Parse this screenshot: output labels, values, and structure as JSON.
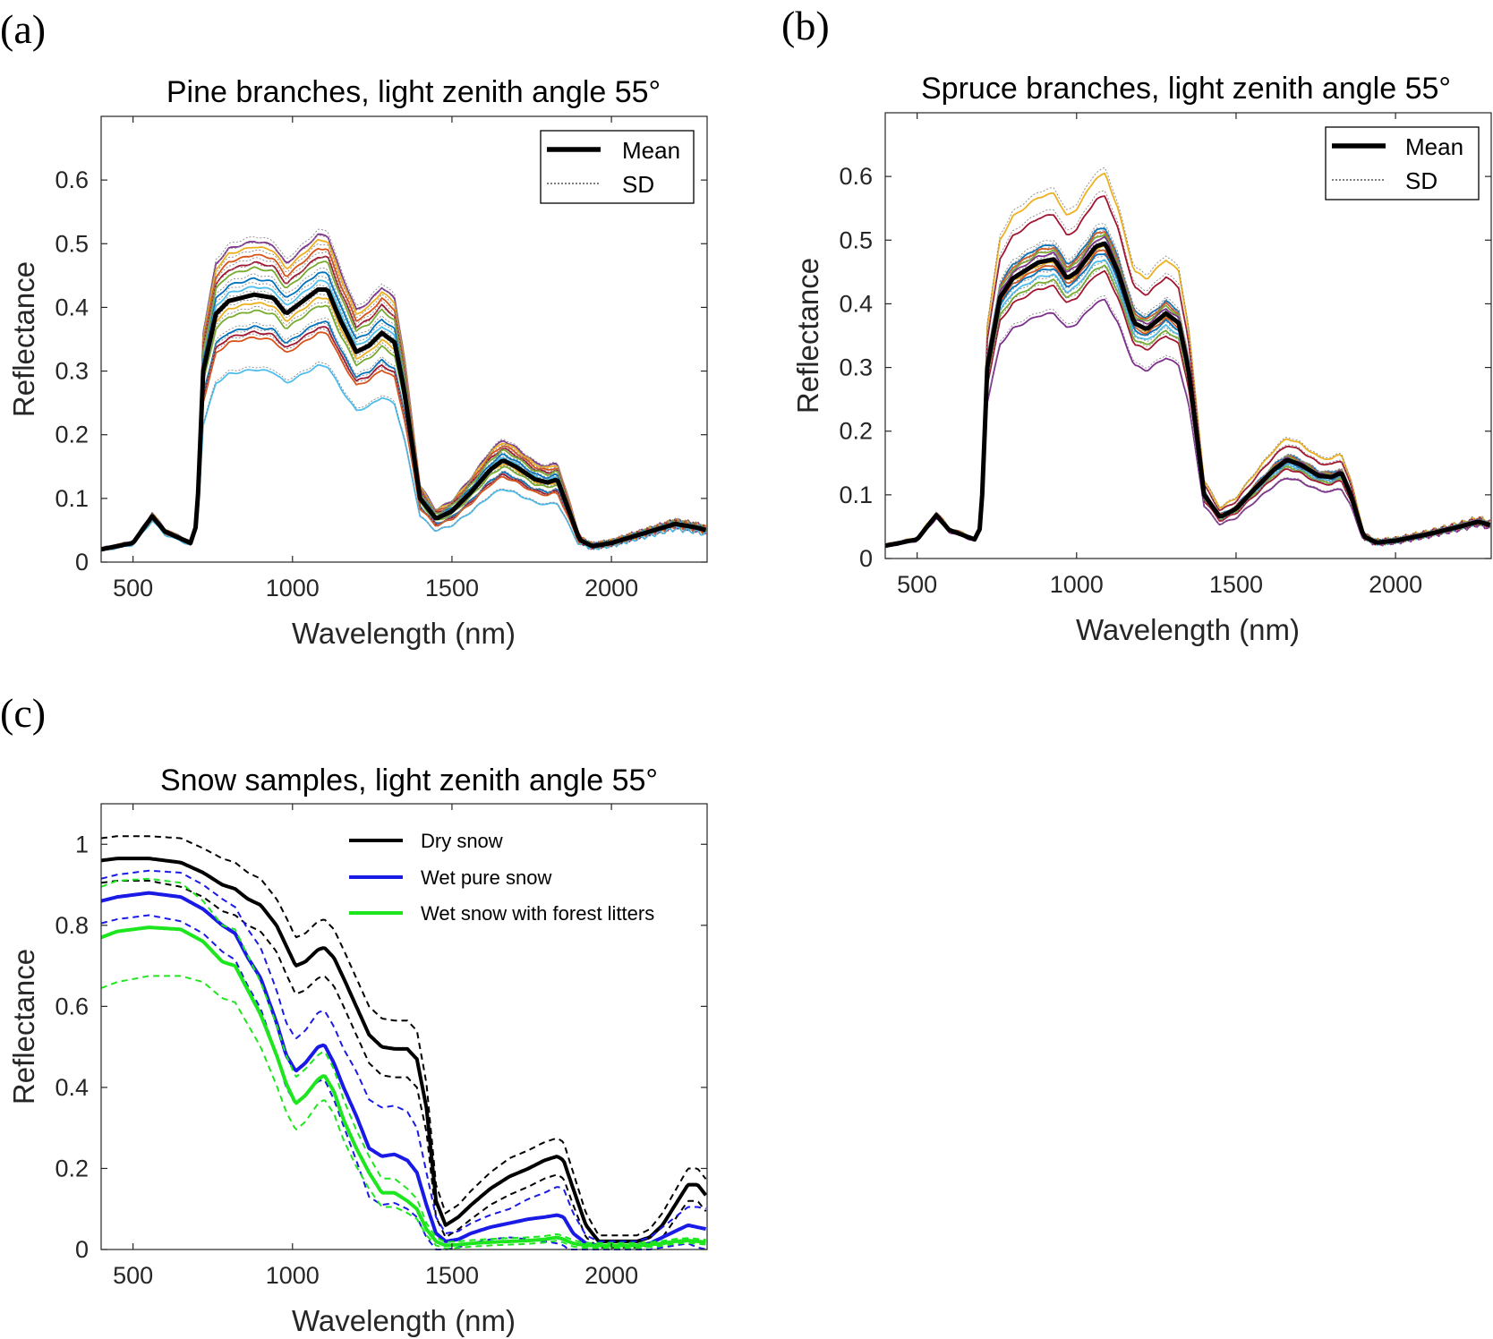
{
  "figure": {
    "panels": [
      {
        "id": "a",
        "label": "(a)"
      },
      {
        "id": "b",
        "label": "(b)"
      },
      {
        "id": "c",
        "label": "(c)"
      }
    ]
  },
  "chart_data": [
    {
      "type": "line",
      "panel": "(a)",
      "title": "Pine branches, light zenith angle 55°",
      "xlabel": "Wavelength (nm)",
      "ylabel": "Reflectance",
      "xlim": [
        400,
        2300
      ],
      "ylim": [
        0,
        0.7
      ],
      "xticks": [
        500,
        1000,
        1500,
        2000
      ],
      "xtick_labels": [
        "500",
        "1000",
        "1500",
        "2000"
      ],
      "yticks": [
        0,
        0.1,
        0.2,
        0.3,
        0.4,
        0.5,
        0.6
      ],
      "ytick_labels": [
        "0",
        "0.1",
        "0.2",
        "0.3",
        "0.4",
        "0.5",
        "0.6"
      ],
      "legend": {
        "position": "top-right",
        "entries": [
          "Mean",
          "SD"
        ]
      },
      "mean_profile": {
        "x": [
          400,
          500,
          560,
          600,
          680,
          700,
          720,
          760,
          800,
          880,
          940,
          980,
          1020,
          1080,
          1110,
          1150,
          1200,
          1240,
          1280,
          1320,
          1350,
          1400,
          1450,
          1500,
          1560,
          1620,
          1660,
          1700,
          1760,
          1800,
          1830,
          1860,
          1900,
          1940,
          2000,
          2100,
          2200,
          2260,
          2300
        ],
        "values": [
          0.02,
          0.03,
          0.072,
          0.048,
          0.03,
          0.06,
          0.3,
          0.39,
          0.41,
          0.42,
          0.415,
          0.39,
          0.405,
          0.428,
          0.428,
          0.38,
          0.33,
          0.34,
          0.36,
          0.345,
          0.27,
          0.1,
          0.068,
          0.08,
          0.11,
          0.145,
          0.16,
          0.15,
          0.13,
          0.125,
          0.13,
          0.09,
          0.035,
          0.025,
          0.03,
          0.045,
          0.06,
          0.055,
          0.05
        ]
      },
      "sample_scales": [
        1.2,
        1.18,
        1.15,
        1.12,
        1.1,
        1.06,
        1.03,
        1.0,
        0.97,
        0.94,
        0.88,
        0.86,
        0.84,
        0.72
      ],
      "sample_colors": [
        "#7E2F8E",
        "#EDB120",
        "#D95319",
        "#A2142F",
        "#77AC30",
        "#0072BD",
        "#4DBEEE",
        "#D95319",
        "#EDB120",
        "#77AC30",
        "#0072BD",
        "#A2142F",
        "#D95319",
        "#4DBEEE"
      ]
    },
    {
      "type": "line",
      "panel": "(b)",
      "title": "Spruce branches, light zenith angle 55°",
      "xlabel": "Wavelength (nm)",
      "ylabel": "Reflectance",
      "xlim": [
        400,
        2300
      ],
      "ylim": [
        0,
        0.7
      ],
      "xticks": [
        500,
        1000,
        1500,
        2000
      ],
      "xtick_labels": [
        "500",
        "1000",
        "1500",
        "2000"
      ],
      "yticks": [
        0,
        0.1,
        0.2,
        0.3,
        0.4,
        0.5,
        0.6
      ],
      "ytick_labels": [
        "0",
        "0.1",
        "0.2",
        "0.3",
        "0.4",
        "0.5",
        "0.6"
      ],
      "legend": {
        "position": "top-right",
        "entries": [
          "Mean",
          "SD"
        ]
      },
      "mean_profile": {
        "x": [
          400,
          500,
          560,
          600,
          680,
          700,
          720,
          760,
          800,
          880,
          930,
          970,
          1000,
          1060,
          1090,
          1130,
          1180,
          1220,
          1280,
          1320,
          1350,
          1400,
          1450,
          1500,
          1560,
          1620,
          1660,
          1700,
          1760,
          1800,
          1830,
          1860,
          1900,
          1940,
          2000,
          2100,
          2200,
          2260,
          2300
        ],
        "values": [
          0.02,
          0.03,
          0.068,
          0.045,
          0.03,
          0.05,
          0.3,
          0.41,
          0.44,
          0.465,
          0.47,
          0.44,
          0.45,
          0.49,
          0.495,
          0.45,
          0.37,
          0.36,
          0.385,
          0.37,
          0.3,
          0.1,
          0.065,
          0.078,
          0.11,
          0.14,
          0.155,
          0.148,
          0.13,
          0.128,
          0.135,
          0.1,
          0.035,
          0.025,
          0.028,
          0.038,
          0.05,
          0.058,
          0.052
        ]
      },
      "sample_scales": [
        1.22,
        1.15,
        1.05,
        1.04,
        1.03,
        1.02,
        1.0,
        0.99,
        0.98,
        0.97,
        0.95,
        0.93,
        0.91,
        0.82
      ],
      "sample_colors": [
        "#EDB120",
        "#A2142F",
        "#0072BD",
        "#D95319",
        "#77AC30",
        "#7E2F8E",
        "#4DBEEE",
        "#EDB120",
        "#D95319",
        "#0072BD",
        "#4DBEEE",
        "#77AC30",
        "#A2142F",
        "#7E2F8E"
      ]
    },
    {
      "type": "line",
      "panel": "(c)",
      "title": "Snow samples, light zenith angle 55°",
      "xlabel": "Wavelength (nm)",
      "ylabel": "Reflectance",
      "xlim": [
        400,
        2300
      ],
      "ylim": [
        0,
        1.1
      ],
      "xticks": [
        500,
        1000,
        1500,
        2000
      ],
      "xtick_labels": [
        "500",
        "1000",
        "1500",
        "2000"
      ],
      "yticks": [
        0,
        0.2,
        0.4,
        0.6,
        0.8,
        1
      ],
      "ytick_labels": [
        "0",
        "0.2",
        "0.4",
        "0.6",
        "0.8",
        "1"
      ],
      "legend": {
        "position": "top-right",
        "entries": [
          "Dry snow",
          "Wet pure snow",
          "Wet snow with forest litters"
        ]
      },
      "series": [
        {
          "name": "Dry snow",
          "color": "#000000",
          "x": [
            400,
            450,
            550,
            650,
            720,
            780,
            820,
            860,
            900,
            950,
            980,
            1010,
            1040,
            1080,
            1100,
            1130,
            1160,
            1200,
            1240,
            1280,
            1320,
            1360,
            1390,
            1420,
            1450,
            1480,
            1520,
            1560,
            1620,
            1680,
            1740,
            1790,
            1830,
            1850,
            1880,
            1920,
            1960,
            2020,
            2080,
            2120,
            2160,
            2200,
            2240,
            2270,
            2300
          ],
          "mean": [
            0.96,
            0.965,
            0.965,
            0.955,
            0.93,
            0.9,
            0.89,
            0.865,
            0.85,
            0.8,
            0.75,
            0.7,
            0.71,
            0.74,
            0.745,
            0.72,
            0.67,
            0.6,
            0.53,
            0.5,
            0.495,
            0.495,
            0.47,
            0.35,
            0.12,
            0.06,
            0.08,
            0.11,
            0.15,
            0.18,
            0.2,
            0.22,
            0.23,
            0.22,
            0.15,
            0.06,
            0.02,
            0.02,
            0.02,
            0.03,
            0.06,
            0.11,
            0.16,
            0.16,
            0.13
          ],
          "sd_offset": [
            0.055,
            0.055,
            0.055,
            0.06,
            0.06,
            0.065,
            0.065,
            0.065,
            0.065,
            0.065,
            0.07,
            0.07,
            0.07,
            0.07,
            0.07,
            0.07,
            0.07,
            0.07,
            0.07,
            0.07,
            0.07,
            0.07,
            0.07,
            0.06,
            0.04,
            0.03,
            0.03,
            0.035,
            0.04,
            0.045,
            0.045,
            0.045,
            0.045,
            0.045,
            0.04,
            0.03,
            0.015,
            0.015,
            0.015,
            0.02,
            0.03,
            0.035,
            0.04,
            0.04,
            0.04
          ]
        },
        {
          "name": "Wet pure snow",
          "color": "#1A1AE6",
          "x": [
            400,
            450,
            550,
            650,
            720,
            780,
            820,
            860,
            900,
            950,
            980,
            1010,
            1040,
            1080,
            1100,
            1130,
            1160,
            1200,
            1240,
            1280,
            1320,
            1360,
            1390,
            1420,
            1450,
            1480,
            1520,
            1560,
            1620,
            1680,
            1740,
            1790,
            1830,
            1850,
            1880,
            1920,
            1960,
            2020,
            2080,
            2120,
            2160,
            2200,
            2240,
            2270,
            2300
          ],
          "mean": [
            0.86,
            0.87,
            0.88,
            0.87,
            0.84,
            0.8,
            0.78,
            0.72,
            0.67,
            0.56,
            0.48,
            0.44,
            0.46,
            0.5,
            0.505,
            0.46,
            0.4,
            0.33,
            0.25,
            0.23,
            0.235,
            0.22,
            0.19,
            0.11,
            0.04,
            0.02,
            0.025,
            0.04,
            0.055,
            0.065,
            0.075,
            0.08,
            0.085,
            0.08,
            0.04,
            0.015,
            0.01,
            0.01,
            0.01,
            0.015,
            0.03,
            0.045,
            0.06,
            0.055,
            0.05
          ],
          "sd_offset": [
            0.055,
            0.055,
            0.055,
            0.06,
            0.06,
            0.065,
            0.065,
            0.07,
            0.075,
            0.08,
            0.08,
            0.08,
            0.08,
            0.085,
            0.085,
            0.09,
            0.095,
            0.11,
            0.12,
            0.12,
            0.12,
            0.12,
            0.11,
            0.08,
            0.04,
            0.02,
            0.02,
            0.025,
            0.03,
            0.035,
            0.05,
            0.06,
            0.07,
            0.07,
            0.05,
            0.02,
            0.01,
            0.01,
            0.01,
            0.015,
            0.025,
            0.035,
            0.045,
            0.05,
            0.05
          ]
        },
        {
          "name": "Wet snow with forest litters",
          "color": "#1EE61E",
          "x": [
            400,
            450,
            550,
            650,
            720,
            780,
            820,
            860,
            900,
            950,
            980,
            1010,
            1040,
            1080,
            1100,
            1130,
            1160,
            1200,
            1240,
            1280,
            1320,
            1360,
            1390,
            1420,
            1450,
            1480,
            1520,
            1560,
            1620,
            1680,
            1740,
            1790,
            1830,
            1850,
            1880,
            1920,
            1960,
            2020,
            2080,
            2120,
            2160,
            2200,
            2240,
            2270,
            2300
          ],
          "mean": [
            0.77,
            0.785,
            0.795,
            0.79,
            0.76,
            0.71,
            0.7,
            0.64,
            0.58,
            0.48,
            0.41,
            0.36,
            0.38,
            0.42,
            0.43,
            0.39,
            0.32,
            0.25,
            0.19,
            0.14,
            0.14,
            0.12,
            0.1,
            0.05,
            0.02,
            0.01,
            0.012,
            0.015,
            0.018,
            0.02,
            0.022,
            0.025,
            0.03,
            0.025,
            0.015,
            0.01,
            0.01,
            0.01,
            0.01,
            0.012,
            0.015,
            0.02,
            0.022,
            0.02,
            0.018
          ],
          "sd_offset": [
            0.125,
            0.125,
            0.12,
            0.115,
            0.1,
            0.09,
            0.09,
            0.085,
            0.08,
            0.075,
            0.07,
            0.065,
            0.065,
            0.06,
            0.06,
            0.055,
            0.05,
            0.045,
            0.04,
            0.035,
            0.035,
            0.03,
            0.025,
            0.015,
            0.01,
            0.008,
            0.008,
            0.008,
            0.008,
            0.008,
            0.008,
            0.008,
            0.008,
            0.008,
            0.008,
            0.006,
            0.006,
            0.006,
            0.006,
            0.006,
            0.006,
            0.006,
            0.006,
            0.006,
            0.006
          ]
        }
      ]
    }
  ]
}
